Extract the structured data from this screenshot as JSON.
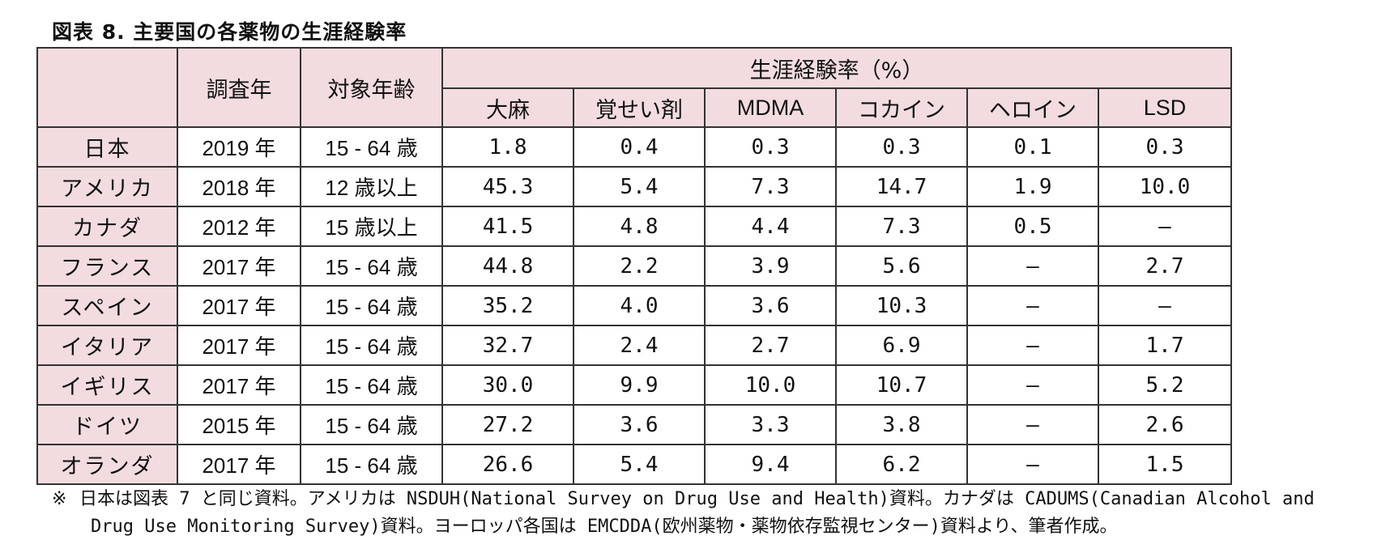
{
  "title": "図表 8.  主要国の各薬物の生涯経験率",
  "table": {
    "header": {
      "survey_year": "調査年",
      "target_age": "対象年齢",
      "group": "生涯経験率（%）",
      "drugs": [
        "大麻",
        "覚せい剤",
        "MDMA",
        "コカイン",
        "ヘロイン",
        "LSD"
      ]
    },
    "rows": [
      {
        "country": "日本",
        "year": "2019 年",
        "age": "15 - 64 歳",
        "values": [
          "1.8",
          "0.4",
          "0.3",
          "0.3",
          "0.1",
          "0.3"
        ]
      },
      {
        "country": "アメリカ",
        "year": "2018 年",
        "age": "12 歳以上",
        "values": [
          "45.3",
          "5.4",
          "7.3",
          "14.7",
          "1.9",
          "10.0"
        ]
      },
      {
        "country": "カナダ",
        "year": "2012 年",
        "age": "15 歳以上",
        "values": [
          "41.5",
          "4.8",
          "4.4",
          "7.3",
          "0.5",
          "—"
        ]
      },
      {
        "country": "フランス",
        "year": "2017 年",
        "age": "15 - 64 歳",
        "values": [
          "44.8",
          "2.2",
          "3.9",
          "5.6",
          "—",
          "2.7"
        ]
      },
      {
        "country": "スペイン",
        "year": "2017 年",
        "age": "15 - 64 歳",
        "values": [
          "35.2",
          "4.0",
          "3.6",
          "10.3",
          "—",
          "—"
        ]
      },
      {
        "country": "イタリア",
        "year": "2017 年",
        "age": "15 - 64 歳",
        "values": [
          "32.7",
          "2.4",
          "2.7",
          "6.9",
          "—",
          "1.7"
        ]
      },
      {
        "country": "イギリス",
        "year": "2017 年",
        "age": "15 - 64 歳",
        "values": [
          "30.0",
          "9.9",
          "10.0",
          "10.7",
          "—",
          "5.2"
        ]
      },
      {
        "country": "ドイツ",
        "year": "2015 年",
        "age": "15 - 64 歳",
        "values": [
          "27.2",
          "3.6",
          "3.3",
          "3.8",
          "—",
          "2.6"
        ]
      },
      {
        "country": "オランダ",
        "year": "2017 年",
        "age": "15 - 64 歳",
        "values": [
          "26.6",
          "5.4",
          "9.4",
          "6.2",
          "—",
          "1.5"
        ]
      }
    ]
  },
  "note": {
    "mark": "※",
    "line1": "日本は図表 7 と同じ資料。アメリカは NSDUH(National Survey on Drug Use and Health)資料。カナダは CADUMS(Canadian Alcohol and",
    "line2": "Drug Use Monitoring Survey)資料。ヨーロッパ各国は EMCDDA(欧州薬物・薬物依存監視センター)資料より、筆者作成。"
  },
  "colors": {
    "header_bg": "#f2dcdf",
    "border": "#333333"
  }
}
